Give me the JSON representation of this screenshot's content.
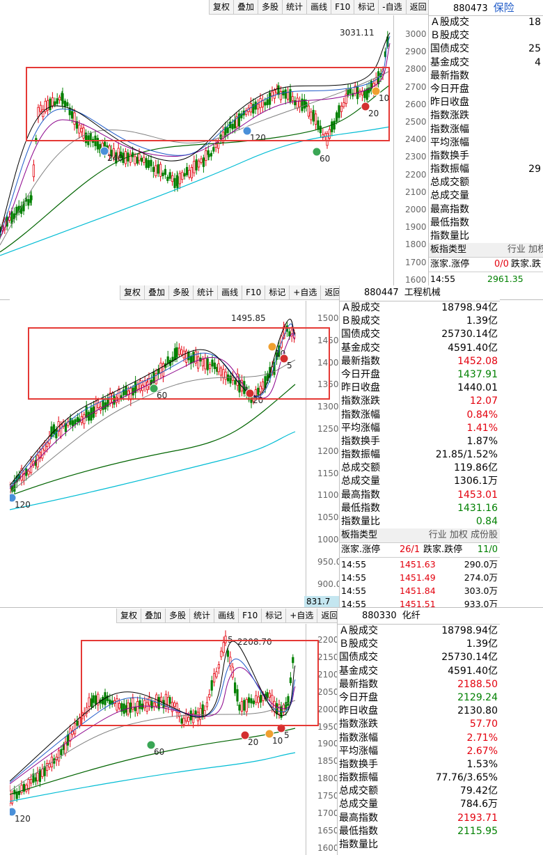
{
  "toolbar_labels": [
    "复权",
    "叠加",
    "多股",
    "统计",
    "画线",
    "F10",
    "标记",
    "-自选",
    "返回"
  ],
  "toolbar_labels_alt": [
    "复权",
    "叠加",
    "多股",
    "统计",
    "画线",
    "F10",
    "标记",
    "+自选",
    "返回"
  ],
  "panel1": {
    "code": "880473",
    "name": "保险",
    "peak_label": "3031.11",
    "y_ticks": [
      "3000",
      "2900",
      "2800",
      "2700",
      "2600",
      "2500",
      "2400",
      "2300",
      "2200",
      "2100",
      "2000",
      "1900",
      "1800",
      "1700",
      "1600"
    ],
    "ma_markers": [
      "240",
      "120",
      "60",
      "20",
      "10"
    ],
    "rows": [
      {
        "label": "Ａ股成交",
        "value": "18"
      },
      {
        "label": "Ｂ股成交",
        "value": ""
      },
      {
        "label": "国债成交",
        "value": "25"
      },
      {
        "label": "基金成交",
        "value": "4"
      },
      {
        "label": "最新指数",
        "value": ""
      },
      {
        "label": "今日开盘",
        "value": ""
      },
      {
        "label": "昨日收盘",
        "value": ""
      },
      {
        "label": "指数涨跌",
        "value": ""
      },
      {
        "label": "指数涨幅",
        "value": ""
      },
      {
        "label": "平均涨幅",
        "value": ""
      },
      {
        "label": "指数换手",
        "value": ""
      },
      {
        "label": "指数振幅",
        "value": "29"
      },
      {
        "label": "总成交额",
        "value": ""
      },
      {
        "label": "总成交量",
        "value": ""
      },
      {
        "label": "最高指数",
        "value": ""
      },
      {
        "label": "最低指数",
        "value": ""
      },
      {
        "label": "指数量比",
        "value": ""
      }
    ],
    "type_label": "板指类型",
    "type_value": "行业 加权",
    "zt_label": "涨家.涨停",
    "zt_value": "0/0",
    "dt_label": "跌家.跌",
    "tick_time": "14:55",
    "tick_price": "2961.35"
  },
  "panel2": {
    "code": "880447",
    "name": "工程机械",
    "peak_label": "1495.85",
    "y_ticks": [
      "1500",
      "1450",
      "1400",
      "1350",
      "1300",
      "1250",
      "1200",
      "1150",
      "1100",
      "1050",
      "1000",
      "950.0",
      "900.0"
    ],
    "bottom_label": "831.7",
    "ma_markers": [
      "60",
      "20",
      "10",
      "5",
      "120"
    ],
    "rows": [
      {
        "label": "Ａ股成交",
        "value": "18798.94亿",
        "color": "black"
      },
      {
        "label": "Ｂ股成交",
        "value": "1.39亿",
        "color": "black"
      },
      {
        "label": "国债成交",
        "value": "25730.14亿",
        "color": "black"
      },
      {
        "label": "基金成交",
        "value": "4591.40亿",
        "color": "black"
      },
      {
        "label": "最新指数",
        "value": "1452.08",
        "color": "red"
      },
      {
        "label": "今日开盘",
        "value": "1437.91",
        "color": "green"
      },
      {
        "label": "昨日收盘",
        "value": "1440.01",
        "color": "black"
      },
      {
        "label": "指数涨跌",
        "value": "12.07",
        "color": "red"
      },
      {
        "label": "指数涨幅",
        "value": "0.84%",
        "color": "red"
      },
      {
        "label": "平均涨幅",
        "value": "1.41%",
        "color": "red"
      },
      {
        "label": "指数换手",
        "value": "1.87%",
        "color": "black"
      },
      {
        "label": "指数振幅",
        "value": "21.85/1.52%",
        "color": "black"
      },
      {
        "label": "总成交额",
        "value": "119.86亿",
        "color": "black"
      },
      {
        "label": "总成交量",
        "value": "1306.1万",
        "color": "black"
      },
      {
        "label": "最高指数",
        "value": "1453.01",
        "color": "red"
      },
      {
        "label": "最低指数",
        "value": "1431.16",
        "color": "green"
      },
      {
        "label": "指数量比",
        "value": "0.84",
        "color": "green"
      }
    ],
    "type_label": "板指类型",
    "type_value": "行业 加权 成份股",
    "zt_label": "涨家.涨停",
    "zt_value": "26/1",
    "dt_label": "跌家.跌停",
    "dt_value": "11/0",
    "ticks": [
      {
        "time": "14:55",
        "price": "1451.63",
        "vol": "290.0万"
      },
      {
        "time": "14:55",
        "price": "1451.49",
        "vol": "274.0万"
      },
      {
        "time": "14:55",
        "price": "1451.84",
        "vol": "303.0万"
      },
      {
        "time": "14:55",
        "price": "1451.51",
        "vol": "933.0万"
      }
    ]
  },
  "panel3": {
    "code": "880330",
    "name": "化纤",
    "peak_label": "2208.70",
    "peak_marker": "5",
    "y_ticks": [
      "2200",
      "2150",
      "2100",
      "2050",
      "2000",
      "1950",
      "1900",
      "1850",
      "1800",
      "1750",
      "1700",
      "1650",
      "1600"
    ],
    "ma_markers": [
      "60",
      "20",
      "10",
      "5",
      "120"
    ],
    "rows": [
      {
        "label": "Ａ股成交",
        "value": "18798.94亿",
        "color": "black"
      },
      {
        "label": "Ｂ股成交",
        "value": "1.39亿",
        "color": "black"
      },
      {
        "label": "国债成交",
        "value": "25730.14亿",
        "color": "black"
      },
      {
        "label": "基金成交",
        "value": "4591.40亿",
        "color": "black"
      },
      {
        "label": "最新指数",
        "value": "2188.50",
        "color": "red"
      },
      {
        "label": "今日开盘",
        "value": "2129.24",
        "color": "green"
      },
      {
        "label": "昨日收盘",
        "value": "2130.80",
        "color": "black"
      },
      {
        "label": "指数涨跌",
        "value": "57.70",
        "color": "red"
      },
      {
        "label": "指数涨幅",
        "value": "2.71%",
        "color": "red"
      },
      {
        "label": "平均涨幅",
        "value": "2.67%",
        "color": "red"
      },
      {
        "label": "指数换手",
        "value": "1.53%",
        "color": "black"
      },
      {
        "label": "指数振幅",
        "value": "77.76/3.65%",
        "color": "black"
      },
      {
        "label": "总成交额",
        "value": "79.42亿",
        "color": "black"
      },
      {
        "label": "总成交量",
        "value": "784.6万",
        "color": "black"
      },
      {
        "label": "最高指数",
        "value": "2193.71",
        "color": "red"
      },
      {
        "label": "最低指数",
        "value": "2115.95",
        "color": "green"
      },
      {
        "label": "指数量比",
        "value": "",
        "color": "red"
      }
    ]
  },
  "colors": {
    "up": "#e3000d",
    "down": "#008000",
    "ma5": "#000000",
    "ma10": "#1e5ac8",
    "ma20": "#8b008b",
    "ma60": "#808080",
    "ma120": "#006400",
    "ma240": "#00bcd4",
    "box": "#e53935"
  }
}
